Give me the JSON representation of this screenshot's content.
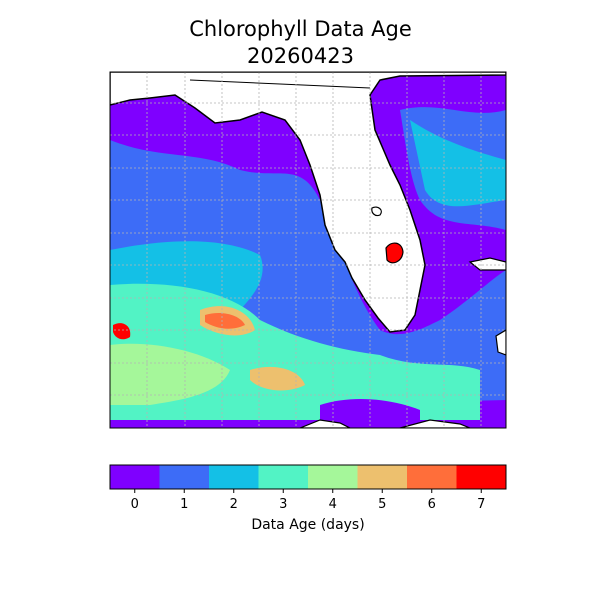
{
  "map": {
    "title": "Chlorophyll Data Age",
    "date": "20260423",
    "colorbar": {
      "label": "Data Age (days)",
      "ticks": [
        "0",
        "1",
        "2",
        "3",
        "4",
        "5",
        "6",
        "7"
      ],
      "colors": [
        "#7f00ff",
        "#3d6cf7",
        "#14c0e6",
        "#52f3c5",
        "#a5f79a",
        "#edc06e",
        "#ff6e3a",
        "#ff0000"
      ]
    },
    "colors": {
      "land": "#ffffff",
      "coast": "#000000",
      "grid": "#b4b4b4"
    }
  }
}
